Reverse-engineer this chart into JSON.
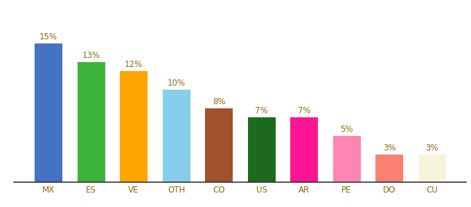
{
  "categories": [
    "MX",
    "ES",
    "VE",
    "OTH",
    "CO",
    "US",
    "AR",
    "PE",
    "DO",
    "CU"
  ],
  "values": [
    15,
    13,
    12,
    10,
    8,
    7,
    7,
    5,
    3,
    3
  ],
  "bar_colors": [
    "#4472C4",
    "#3CB43C",
    "#FFA500",
    "#87CEEB",
    "#A0522D",
    "#1C6B1C",
    "#FF1493",
    "#FF85B3",
    "#FA8072",
    "#F5F5DC"
  ],
  "ylim": [
    0,
    19
  ],
  "label_color": "#8B6914",
  "label_fontsize": 8.5,
  "tick_fontsize": 8.5,
  "tick_color": "#8B6914",
  "bar_width": 0.65
}
